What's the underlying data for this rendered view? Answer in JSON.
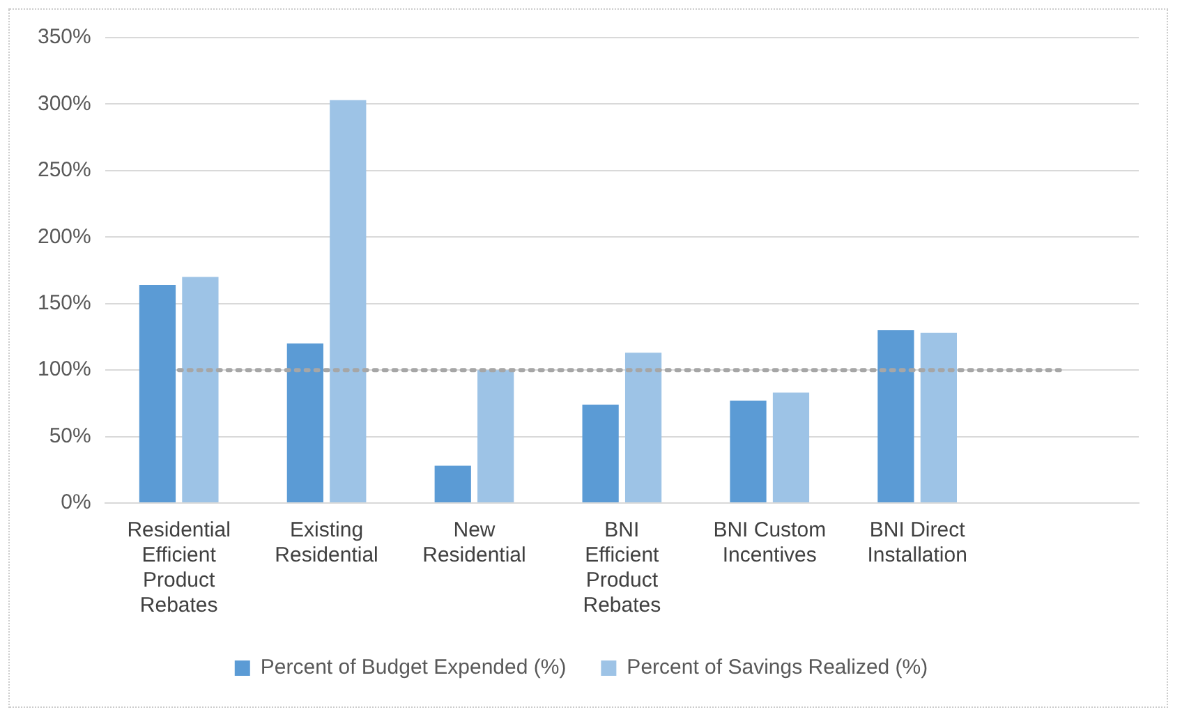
{
  "chart_data": {
    "type": "bar",
    "categories": [
      "Residential Efficient Product Rebates",
      "Existing Residential",
      "New Residential",
      "BNI Efficient Product Rebates",
      "BNI Custom Incentives",
      "BNI Direct Installation",
      null
    ],
    "series": [
      {
        "name": "Percent of Budget Expended (%)",
        "color": "#5b9bd5",
        "values": [
          164,
          120,
          28,
          74,
          77,
          130,
          null
        ]
      },
      {
        "name": "Percent of Savings Realized (%)",
        "color": "#9dc3e6",
        "values": [
          170,
          303,
          100,
          113,
          83,
          128,
          null
        ]
      }
    ],
    "ylim": [
      0,
      350
    ],
    "yticks": [
      {
        "value": 0,
        "label": "0%"
      },
      {
        "value": 50,
        "label": "50%"
      },
      {
        "value": 100,
        "label": "100%"
      },
      {
        "value": 150,
        "label": "150%"
      },
      {
        "value": 200,
        "label": "200%"
      },
      {
        "value": 250,
        "label": "250%"
      },
      {
        "value": 300,
        "label": "300%"
      },
      {
        "value": 350,
        "label": "350%"
      }
    ],
    "grid": "y",
    "legend": "bottom",
    "ref_lines": [
      {
        "axis": "y",
        "value": 100,
        "color": "#a6a6a6",
        "line_style": "dotted"
      }
    ]
  }
}
